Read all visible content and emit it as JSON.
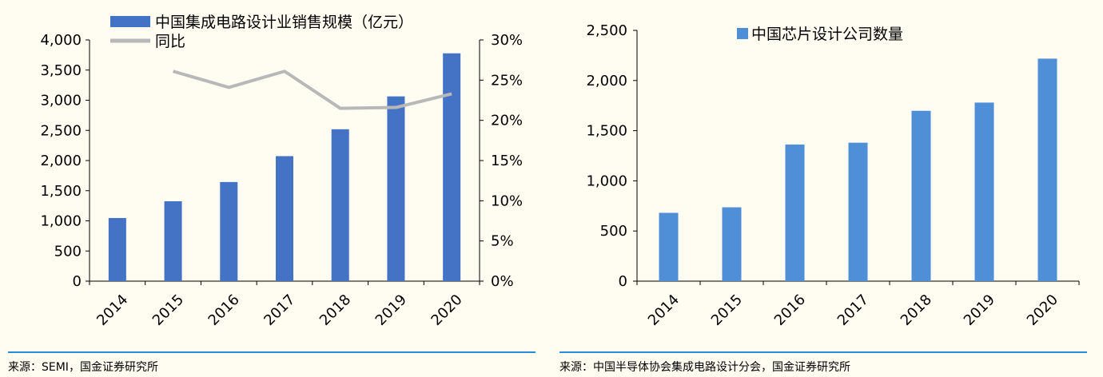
{
  "chart_data": [
    {
      "type": "bar",
      "categories": [
        "2014",
        "2015",
        "2016",
        "2017",
        "2018",
        "2019",
        "2020"
      ],
      "series": [
        {
          "name": "中国集成电路设计业销售规模（亿元）",
          "type": "bar",
          "axis": "left",
          "color": "#4472C4",
          "values": [
            1047,
            1325,
            1644,
            2073,
            2519,
            3064,
            3778
          ]
        },
        {
          "name": "同比",
          "type": "line",
          "axis": "right",
          "color": "#B8B8B8",
          "values": [
            null,
            26.1,
            24.1,
            26.1,
            21.5,
            21.6,
            23.3
          ]
        }
      ],
      "ylim": [
        0,
        4000
      ],
      "yticks": [
        "0",
        "500",
        "1,000",
        "1,500",
        "2,000",
        "2,500",
        "3,000",
        "3,500",
        "4,000"
      ],
      "y2lim": [
        0,
        30
      ],
      "y2ticks": [
        "0%",
        "5%",
        "10%",
        "15%",
        "20%",
        "25%",
        "30%"
      ],
      "legend_position": "top"
    },
    {
      "type": "bar",
      "categories": [
        "2014",
        "2015",
        "2016",
        "2017",
        "2018",
        "2019",
        "2020"
      ],
      "series": [
        {
          "name": "中国芯片设计公司数量",
          "color": "#4F8FD8",
          "values": [
            681,
            736,
            1362,
            1380,
            1698,
            1780,
            2218
          ]
        }
      ],
      "ylim": [
        0,
        2500
      ],
      "yticks": [
        "0",
        "500",
        "1,000",
        "1,500",
        "2,000",
        "2,500"
      ],
      "legend_position": "top"
    }
  ],
  "sources": {
    "left": "来源：SEMI，国金证券研究所",
    "right": "来源：中国半导体协会集成电路设计分会，国金证券研究所"
  }
}
